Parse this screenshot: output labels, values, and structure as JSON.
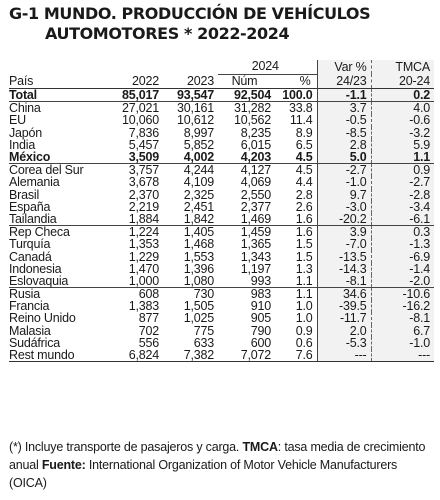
{
  "title": {
    "line1": "G-1 MUNDO. PRODUCCIÓN DE VEHÍCULOS",
    "line2": "AUTOMOTORES * 2022-2024"
  },
  "header": {
    "group_2024": "2024",
    "var_line1": "Var %",
    "var_line2": "24/23",
    "tmca_line1": "TMCA",
    "tmca_line2": "20-24",
    "pais": "País",
    "y2022": "2022",
    "y2023": "2023",
    "num": "Núm",
    "pct": "%"
  },
  "rows": [
    {
      "pais": "Total",
      "y2022": "85,017",
      "y2023": "93,547",
      "num": "92,504",
      "pct": "100.0",
      "var": "-1.1",
      "tmca": "0.2"
    },
    {
      "pais": "China",
      "y2022": "27,021",
      "y2023": "30,161",
      "num": "31,282",
      "pct": "33.8",
      "var": "3.7",
      "tmca": "4.0"
    },
    {
      "pais": "EU",
      "y2022": "10,060",
      "y2023": "10,612",
      "num": "10,562",
      "pct": "11.4",
      "var": "-0.5",
      "tmca": "-0.6"
    },
    {
      "pais": "Japón",
      "y2022": "7,836",
      "y2023": "8,997",
      "num": "8,235",
      "pct": "8.9",
      "var": "-8.5",
      "tmca": "-3.2"
    },
    {
      "pais": "India",
      "y2022": "5,457",
      "y2023": "5,852",
      "num": "6,015",
      "pct": "6.5",
      "var": "2.8",
      "tmca": "5.9"
    },
    {
      "pais": "México",
      "y2022": "3,509",
      "y2023": "4,002",
      "num": "4,203",
      "pct": "4.5",
      "var": "5.0",
      "tmca": "1.1"
    },
    {
      "pais": "Corea del Sur",
      "y2022": "3,757",
      "y2023": "4,244",
      "num": "4,127",
      "pct": "4.5",
      "var": "-2.7",
      "tmca": "0.9"
    },
    {
      "pais": "Alemania",
      "y2022": "3,678",
      "y2023": "4,109",
      "num": "4,069",
      "pct": "4.4",
      "var": "-1.0",
      "tmca": "-2.7"
    },
    {
      "pais": "Brasil",
      "y2022": "2,370",
      "y2023": "2,325",
      "num": "2,550",
      "pct": "2.8",
      "var": "9.7",
      "tmca": "-2.8"
    },
    {
      "pais": "España",
      "y2022": "2,219",
      "y2023": "2,451",
      "num": "2,377",
      "pct": "2.6",
      "var": "-3.0",
      "tmca": "-3.4"
    },
    {
      "pais": "Tailandia",
      "y2022": "1,884",
      "y2023": "1,842",
      "num": "1,469",
      "pct": "1.6",
      "var": "-20.2",
      "tmca": "-6.1"
    },
    {
      "pais": "Rep Checa",
      "y2022": "1,224",
      "y2023": "1,405",
      "num": "1,459",
      "pct": "1.6",
      "var": "3.9",
      "tmca": "0.3"
    },
    {
      "pais": "Turquía",
      "y2022": "1,353",
      "y2023": "1,468",
      "num": "1,365",
      "pct": "1.5",
      "var": "-7.0",
      "tmca": "-1.3"
    },
    {
      "pais": "Canadá",
      "y2022": "1,229",
      "y2023": "1,553",
      "num": "1,343",
      "pct": "1.5",
      "var": "-13.5",
      "tmca": "-6.9"
    },
    {
      "pais": "Indonesia",
      "y2022": "1,470",
      "y2023": "1,396",
      "num": "1,197",
      "pct": "1.3",
      "var": "-14.3",
      "tmca": "-1.4"
    },
    {
      "pais": "Eslovaquia",
      "y2022": "1,000",
      "y2023": "1,080",
      "num": "993",
      "pct": "1.1",
      "var": "-8.1",
      "tmca": "-2.0"
    },
    {
      "pais": "Rusia",
      "y2022": "608",
      "y2023": "730",
      "num": "983",
      "pct": "1.1",
      "var": "34.6",
      "tmca": "-10.6"
    },
    {
      "pais": "Francia",
      "y2022": "1,383",
      "y2023": "1,505",
      "num": "910",
      "pct": "1.0",
      "var": "-39.5",
      "tmca": "-16.2"
    },
    {
      "pais": "Reino Unido",
      "y2022": "877",
      "y2023": "1,025",
      "num": "905",
      "pct": "1.0",
      "var": "-11.7",
      "tmca": "-8.1"
    },
    {
      "pais": "Malasia",
      "y2022": "702",
      "y2023": "775",
      "num": "790",
      "pct": "0.9",
      "var": "2.0",
      "tmca": "6.7"
    },
    {
      "pais": "Sudáfrica",
      "y2022": "556",
      "y2023": "633",
      "num": "600",
      "pct": "0.6",
      "var": "-5.3",
      "tmca": "-1.0"
    },
    {
      "pais": "Rest mundo",
      "y2022": "6,824",
      "y2023": "7,382",
      "num": "7,072",
      "pct": "7.6",
      "var": "---",
      "tmca": "---"
    }
  ],
  "footnote": {
    "part1": "(*) Incluye transporte de pasajeros y carga. ",
    "tmca_label": "TMCA",
    "part2": ": tasa media de crecimiento anual  ",
    "source_label": "Fuente:",
    "part3": " International Organization of Motor Vehicle Manufacturers (OICA)"
  }
}
